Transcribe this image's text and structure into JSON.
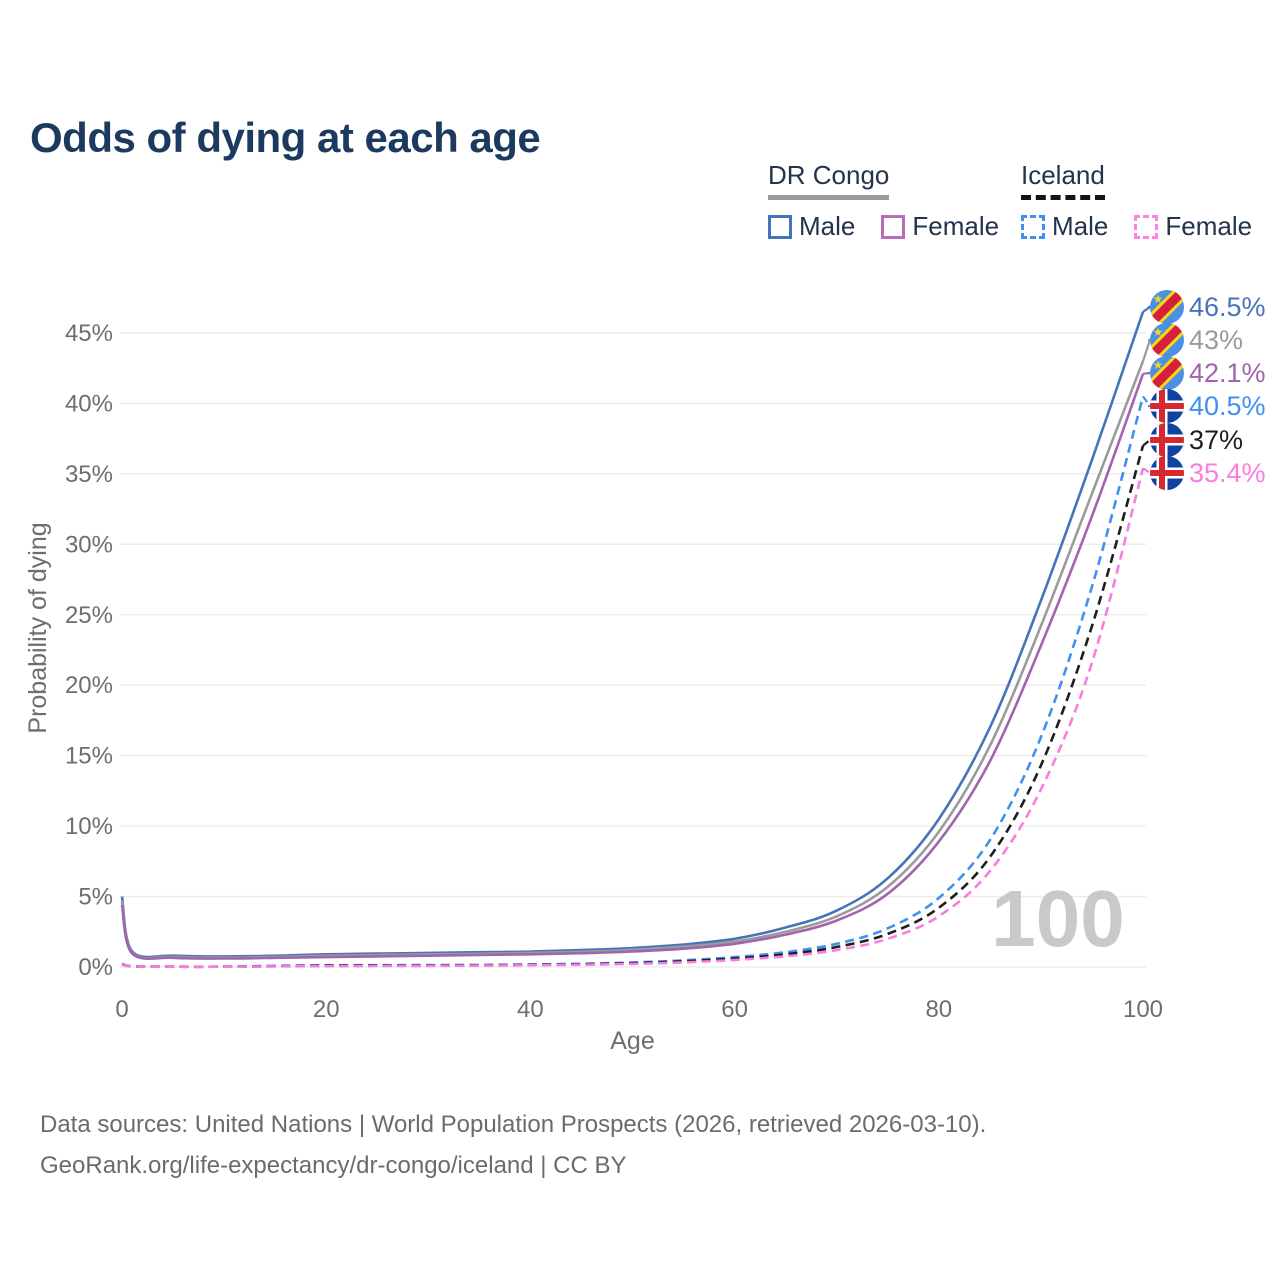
{
  "title": "Odds of dying at each age",
  "legend": {
    "groups": [
      {
        "name": "DR Congo",
        "line_style": "solid",
        "underline_color": "#9a9a9a",
        "items": [
          {
            "label": "Male",
            "color": "#4674ba",
            "dashed": false
          },
          {
            "label": "Female",
            "color": "#b46fb9",
            "dashed": false
          }
        ]
      },
      {
        "name": "Iceland",
        "line_style": "dashed",
        "underline_color": "#141414",
        "items": [
          {
            "label": "Male",
            "color": "#4090f2",
            "dashed": true
          },
          {
            "label": "Female",
            "color": "#fb84e2",
            "dashed": true
          }
        ]
      }
    ]
  },
  "watermark_age": "100",
  "footer": {
    "line1": "Data sources: United Nations | World Population Prospects (2026, retrieved 2026-03-10).",
    "line2": "GeoRank.org/life-expectancy/dr-congo/iceland | CC BY"
  },
  "colors": {
    "title_text": "#1c3a5f",
    "axis_text": "#6e6e6e",
    "gridline": "#ebebeb",
    "watermark": "#c9c9c9",
    "flag_cd_blue": "#4b90e2",
    "flag_cd_red": "#d6203b",
    "flag_cd_yellow": "#f7d618",
    "flag_is_blue": "#10439f",
    "flag_is_red": "#d7282f",
    "flag_is_white": "#ffffff"
  },
  "chart_data": {
    "type": "line",
    "title": "Odds of dying at each age",
    "xlabel": "Age",
    "ylabel": "Probability of dying",
    "x_ticks": [
      0,
      20,
      40,
      60,
      80,
      100
    ],
    "y_ticks_pct": [
      0,
      5,
      10,
      15,
      20,
      25,
      30,
      35,
      40,
      45
    ],
    "xlim": [
      0,
      100
    ],
    "ylim_pct": [
      0,
      47
    ],
    "grid": true,
    "legend_position": "top-right",
    "ages": [
      0,
      1,
      5,
      10,
      15,
      20,
      25,
      30,
      35,
      40,
      45,
      50,
      55,
      60,
      65,
      70,
      75,
      80,
      85,
      90,
      95,
      100
    ],
    "series": [
      {
        "name": "DR Congo Male",
        "country": "DR Congo",
        "sex": "Male",
        "flag": "cd",
        "color": "#4674ba",
        "dashed": false,
        "end_label": "46.5%",
        "end_value_pct": 46.5,
        "values": [
          5.0,
          1.1,
          0.8,
          0.75,
          0.8,
          0.9,
          0.95,
          1.0,
          1.05,
          1.1,
          1.2,
          1.35,
          1.6,
          2.0,
          2.8,
          4.0,
          6.3,
          10.5,
          17.0,
          26.0,
          36.0,
          46.5
        ]
      },
      {
        "name": "DR Congo Both sexes",
        "country": "DR Congo",
        "sex": "Both",
        "flag": "cd",
        "color": "#9b9b9b",
        "dashed": false,
        "end_label": "43%",
        "end_value_pct": 43,
        "values": [
          4.7,
          1.0,
          0.72,
          0.67,
          0.72,
          0.8,
          0.85,
          0.9,
          0.94,
          1.0,
          1.08,
          1.22,
          1.45,
          1.8,
          2.5,
          3.6,
          5.7,
          9.6,
          15.7,
          24.2,
          33.6,
          43.0
        ]
      },
      {
        "name": "DR Congo Female",
        "country": "DR Congo",
        "sex": "Female",
        "flag": "cd",
        "color": "#a164ad",
        "dashed": false,
        "end_label": "42.1%",
        "end_value_pct": 42.1,
        "values": [
          4.4,
          0.95,
          0.65,
          0.6,
          0.65,
          0.7,
          0.75,
          0.8,
          0.85,
          0.9,
          0.98,
          1.1,
          1.3,
          1.65,
          2.3,
          3.3,
          5.2,
          8.9,
          14.6,
          22.8,
          32.0,
          42.1
        ]
      },
      {
        "name": "Iceland Male",
        "country": "Iceland",
        "sex": "Male",
        "flag": "is",
        "color": "#4090f2",
        "dashed": true,
        "end_label": "40.5%",
        "end_value_pct": 40.5,
        "values": [
          0.22,
          0.05,
          0.03,
          0.03,
          0.08,
          0.12,
          0.13,
          0.14,
          0.15,
          0.18,
          0.23,
          0.32,
          0.47,
          0.7,
          1.05,
          1.65,
          2.75,
          4.9,
          9.0,
          16.3,
          27.0,
          40.5
        ]
      },
      {
        "name": "Iceland Both sexes",
        "country": "Iceland",
        "sex": "Both",
        "flag": "is",
        "color": "#1e1e1e",
        "dashed": true,
        "end_label": "37%",
        "end_value_pct": 37,
        "values": [
          0.19,
          0.04,
          0.02,
          0.02,
          0.06,
          0.09,
          0.1,
          0.11,
          0.12,
          0.15,
          0.19,
          0.27,
          0.4,
          0.6,
          0.9,
          1.42,
          2.35,
          4.2,
          7.8,
          14.3,
          24.2,
          37.0
        ]
      },
      {
        "name": "Iceland Female",
        "country": "Iceland",
        "sex": "Female",
        "flag": "is",
        "color": "#fb7ce1",
        "dashed": true,
        "end_label": "35.4%",
        "end_value_pct": 35.4,
        "values": [
          0.17,
          0.04,
          0.02,
          0.02,
          0.04,
          0.06,
          0.07,
          0.08,
          0.1,
          0.12,
          0.16,
          0.22,
          0.33,
          0.5,
          0.76,
          1.2,
          2.0,
          3.6,
          6.8,
          12.6,
          21.6,
          35.4
        ]
      }
    ]
  }
}
